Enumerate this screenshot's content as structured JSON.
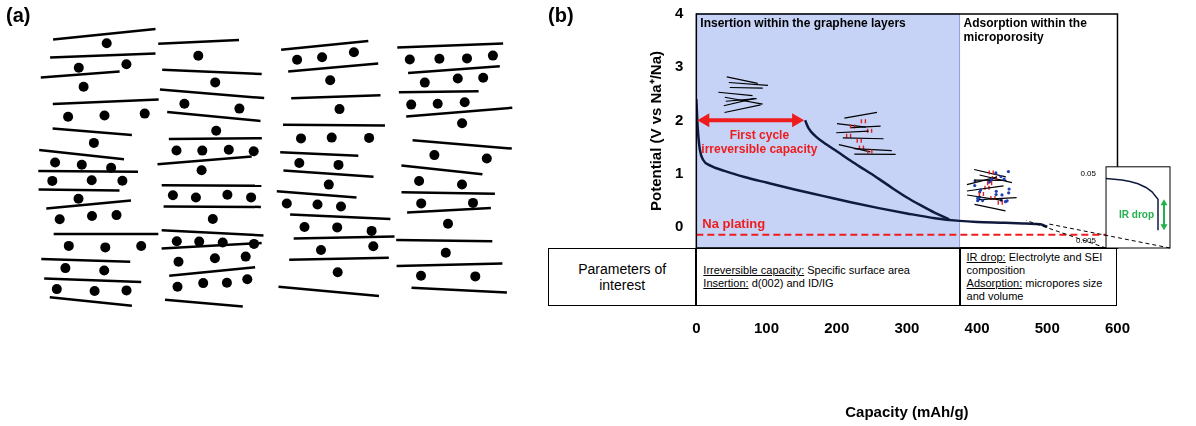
{
  "panel_a": {
    "label": "(a)"
  },
  "chart_data": {
    "type": "line",
    "panel_label": "(b)",
    "x_label": "Capacity (mAh/g)",
    "y_label": "Potential (V vs Na⁺/Na)",
    "xlim": [
      0,
      600
    ],
    "xticks": [
      0,
      100,
      200,
      300,
      400,
      500,
      600
    ],
    "ylim": [
      -0.4,
      4
    ],
    "yticks": [
      0,
      1,
      2,
      3,
      4
    ],
    "grid": false,
    "series": [
      {
        "color": "#101a3d",
        "x": [
          0,
          2,
          5,
          10,
          20,
          40,
          70,
          100,
          140,
          180,
          220,
          260,
          300,
          340,
          375,
          400,
          440,
          470,
          490,
          500
        ],
        "values": [
          2.4,
          1.85,
          1.45,
          1.25,
          1.15,
          1.05,
          0.93,
          0.83,
          0.7,
          0.58,
          0.46,
          0.35,
          0.25,
          0.16,
          0.11,
          0.09,
          0.075,
          0.06,
          0.045,
          0.0
        ]
      },
      {
        "color": "#101a3d",
        "x": [
          155,
          160,
          170,
          185,
          200,
          220,
          240,
          260,
          280,
          300,
          320,
          340,
          360
        ],
        "values": [
          2.0,
          1.85,
          1.7,
          1.55,
          1.42,
          1.24,
          1.07,
          0.9,
          0.72,
          0.55,
          0.4,
          0.26,
          0.14
        ]
      }
    ],
    "regions": [
      {
        "text": "Insertion within the graphene layers",
        "xlim": [
          0,
          375
        ],
        "color": "#c6d3f7"
      },
      {
        "text": "Adsorption within the microporosity",
        "xlim": [
          375,
          600
        ]
      }
    ],
    "annotations": [
      {
        "type": "arrow",
        "text": [
          "First cycle",
          "irreversible capacity"
        ],
        "x": [
          0,
          155
        ],
        "y": 2.0,
        "color": "#ee1c1c"
      },
      {
        "type": "hline",
        "text": "Na plating",
        "y": -0.15,
        "color": "#ee1c1c",
        "line_style": "dashed"
      }
    ],
    "inset": {
      "type": "line",
      "xlim": [
        468,
        500
      ],
      "ylim": [
        0,
        0.055
      ],
      "yticks": [
        0.005,
        0.05
      ],
      "tick_labels": "y",
      "color": "#101a3d",
      "x": [
        468,
        472,
        476,
        480,
        484,
        488,
        491,
        494,
        494
      ],
      "values": [
        0.047,
        0.0465,
        0.046,
        0.045,
        0.0435,
        0.041,
        0.038,
        0.033,
        0.012
      ],
      "annotation": {
        "text": "IR drop",
        "color": "#22b14c"
      }
    },
    "table": {
      "header": "Parameters of interest",
      "columns": [
        {
          "xlim": [
            0,
            375
          ],
          "items": [
            {
              "term": "Irreversible capacity:",
              "detail": "Specific surface area"
            },
            {
              "term": "Insertion:",
              "detail": "d(002) and ID/IG"
            }
          ]
        },
        {
          "xlim": [
            375,
            600
          ],
          "items": [
            {
              "term": "IR drop:",
              "detail": "Electrolyte and SEI composition"
            },
            {
              "term": "Adsorption:",
              "detail": "micropores size and volume"
            }
          ]
        }
      ]
    }
  }
}
